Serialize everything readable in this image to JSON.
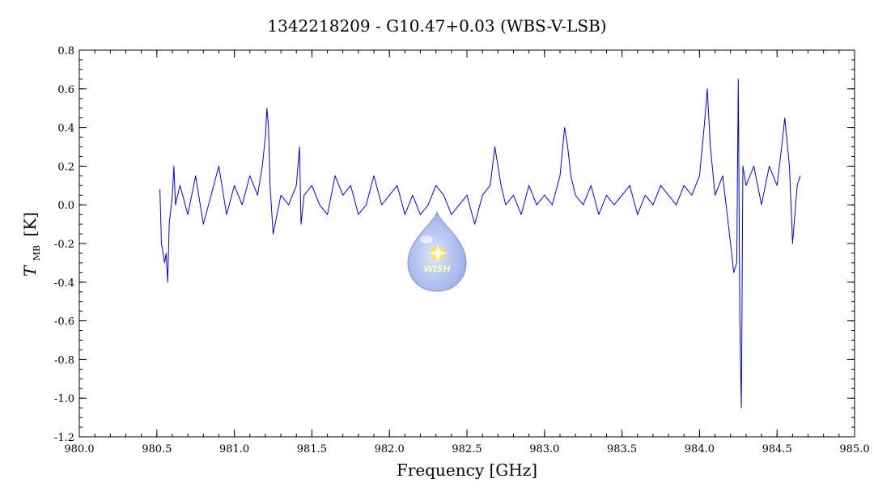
{
  "chart_data": {
    "type": "line",
    "title": "1342218209 - G10.47+0.03 (WBS-V-LSB)",
    "xlabel": "Frequency [GHz]",
    "ylabel_main": "T",
    "ylabel_sub": "MB",
    "ylabel_unit": "[K]",
    "xlim": [
      980.0,
      985.0
    ],
    "ylim": [
      -1.2,
      0.8
    ],
    "x_ticks": [
      "980.0",
      "981.0",
      "981.5",
      "982.0",
      "982.5",
      "983.0",
      "983.5",
      "984.0",
      "984.5",
      "985.0"
    ],
    "x_tick_values": [
      980.0,
      981.0,
      981.5,
      982.0,
      982.5,
      983.0,
      983.5,
      984.0,
      984.5,
      985.0
    ],
    "x_tick_labels_extra": [
      "980.5"
    ],
    "x_tick_values_extra": [
      980.5
    ],
    "y_ticks": [
      "0.8",
      "0.6",
      "0.4",
      "0.2",
      "0.0",
      "-0.2",
      "-0.4",
      "-0.6",
      "-0.8",
      "-1.0",
      "-1.2"
    ],
    "y_tick_values": [
      0.8,
      0.6,
      0.4,
      0.2,
      0.0,
      -0.2,
      -0.4,
      -0.6,
      -0.8,
      -1.0,
      -1.2
    ],
    "grid": false,
    "series": [
      {
        "color": "#0000ff",
        "x": [
          980.52,
          980.53,
          980.55,
          980.56,
          980.57,
          980.58,
          980.6,
          980.61,
          980.62,
          980.65,
          980.7,
          980.75,
          980.8,
          980.85,
          980.9,
          980.95,
          981.0,
          981.05,
          981.1,
          981.15,
          981.18,
          981.2,
          981.21,
          981.22,
          981.23,
          981.25,
          981.3,
          981.35,
          981.4,
          981.42,
          981.43,
          981.45,
          981.5,
          981.55,
          981.6,
          981.65,
          981.7,
          981.75,
          981.8,
          981.85,
          981.9,
          981.95,
          982.0,
          982.05,
          982.1,
          982.15,
          982.2,
          982.25,
          982.3,
          982.35,
          982.4,
          982.45,
          982.5,
          982.55,
          982.6,
          982.65,
          982.68,
          982.7,
          982.72,
          982.75,
          982.8,
          982.85,
          982.9,
          982.95,
          983.0,
          983.05,
          983.1,
          983.13,
          983.15,
          983.17,
          983.2,
          983.25,
          983.3,
          983.35,
          983.4,
          983.45,
          983.5,
          983.55,
          983.6,
          983.65,
          983.7,
          983.75,
          983.8,
          983.85,
          983.9,
          983.95,
          984.0,
          984.03,
          984.05,
          984.07,
          984.1,
          984.15,
          984.2,
          984.22,
          984.24,
          984.25,
          984.26,
          984.27,
          984.28,
          984.3,
          984.35,
          984.4,
          984.45,
          984.5,
          984.53,
          984.55,
          984.58,
          984.6,
          984.63,
          984.65
        ],
        "y": [
          0.08,
          -0.2,
          -0.3,
          -0.25,
          -0.4,
          -0.1,
          0.05,
          0.2,
          0.0,
          0.1,
          -0.05,
          0.15,
          -0.1,
          0.05,
          0.2,
          -0.05,
          0.1,
          0.0,
          0.15,
          0.05,
          0.2,
          0.35,
          0.5,
          0.4,
          0.1,
          -0.15,
          0.05,
          0.0,
          0.1,
          0.3,
          -0.1,
          0.05,
          0.1,
          0.0,
          -0.05,
          0.15,
          0.05,
          0.1,
          -0.05,
          0.0,
          0.15,
          0.0,
          0.05,
          0.1,
          -0.05,
          0.05,
          -0.05,
          0.0,
          0.1,
          0.05,
          -0.05,
          0.0,
          0.05,
          -0.1,
          0.05,
          0.1,
          0.3,
          0.2,
          0.1,
          0.0,
          0.05,
          -0.05,
          0.1,
          0.0,
          0.05,
          0.0,
          0.15,
          0.4,
          0.3,
          0.15,
          0.05,
          0.0,
          0.1,
          -0.05,
          0.05,
          0.0,
          0.05,
          0.1,
          -0.05,
          0.05,
          0.0,
          0.1,
          0.05,
          0.0,
          0.1,
          0.05,
          0.15,
          0.4,
          0.6,
          0.3,
          0.05,
          0.15,
          -0.2,
          -0.35,
          -0.3,
          0.65,
          -0.6,
          -1.05,
          0.2,
          0.1,
          0.2,
          0.0,
          0.2,
          0.1,
          0.3,
          0.45,
          0.2,
          -0.2,
          0.1,
          0.15
        ]
      }
    ],
    "watermark_text": "WISH"
  }
}
